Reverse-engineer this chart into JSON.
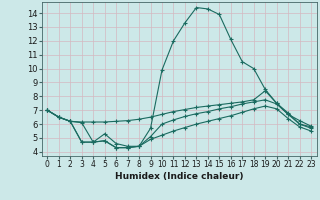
{
  "xlabel": "Humidex (Indice chaleur)",
  "bg_color": "#cce8e8",
  "grid_color": "#d4b8c0",
  "line_color": "#1a6b60",
  "xlim": [
    -0.5,
    23.5
  ],
  "ylim": [
    3.7,
    14.8
  ],
  "x_ticks": [
    0,
    1,
    2,
    3,
    4,
    5,
    6,
    7,
    8,
    9,
    10,
    11,
    12,
    13,
    14,
    15,
    16,
    17,
    18,
    19,
    20,
    21,
    22,
    23
  ],
  "y_ticks": [
    4,
    5,
    6,
    7,
    8,
    9,
    10,
    11,
    12,
    13,
    14
  ],
  "line1_x": [
    0,
    1,
    2,
    3,
    4,
    5,
    6,
    7,
    8,
    9,
    10,
    11,
    12,
    13,
    14,
    15,
    16,
    17,
    18,
    19,
    20,
    21,
    22,
    23
  ],
  "line1_y": [
    7.0,
    6.5,
    6.2,
    6.15,
    6.15,
    6.15,
    6.2,
    6.25,
    6.35,
    6.5,
    6.7,
    6.9,
    7.05,
    7.2,
    7.3,
    7.4,
    7.5,
    7.6,
    7.75,
    8.4,
    7.5,
    6.7,
    6.25,
    5.85
  ],
  "line2_x": [
    0,
    1,
    2,
    3,
    4,
    5,
    6,
    7,
    8,
    9,
    10,
    11,
    12,
    13,
    14,
    15,
    16,
    17,
    18,
    19,
    20,
    21,
    22,
    23
  ],
  "line2_y": [
    7.0,
    6.5,
    6.2,
    6.1,
    4.7,
    5.3,
    4.6,
    4.4,
    4.4,
    5.7,
    9.9,
    12.0,
    13.3,
    14.4,
    14.3,
    13.9,
    12.1,
    10.5,
    10.0,
    8.5,
    7.5,
    6.8,
    6.0,
    5.8
  ],
  "line3_x": [
    0,
    1,
    2,
    3,
    4,
    5,
    6,
    7,
    8,
    9,
    10,
    11,
    12,
    13,
    14,
    15,
    16,
    17,
    18,
    19,
    20,
    21,
    22,
    23
  ],
  "line3_y": [
    7.0,
    6.5,
    6.2,
    4.7,
    4.7,
    4.8,
    4.3,
    4.3,
    4.4,
    5.1,
    6.0,
    6.3,
    6.55,
    6.75,
    6.9,
    7.1,
    7.25,
    7.45,
    7.6,
    7.75,
    7.45,
    6.7,
    6.0,
    5.7
  ],
  "line4_x": [
    0,
    1,
    2,
    3,
    4,
    5,
    6,
    7,
    8,
    9,
    10,
    11,
    12,
    13,
    14,
    15,
    16,
    17,
    18,
    19,
    20,
    21,
    22,
    23
  ],
  "line4_y": [
    7.0,
    6.5,
    6.2,
    4.7,
    4.7,
    4.8,
    4.3,
    4.3,
    4.4,
    4.9,
    5.2,
    5.5,
    5.75,
    6.0,
    6.2,
    6.4,
    6.6,
    6.85,
    7.1,
    7.3,
    7.1,
    6.4,
    5.8,
    5.5
  ]
}
